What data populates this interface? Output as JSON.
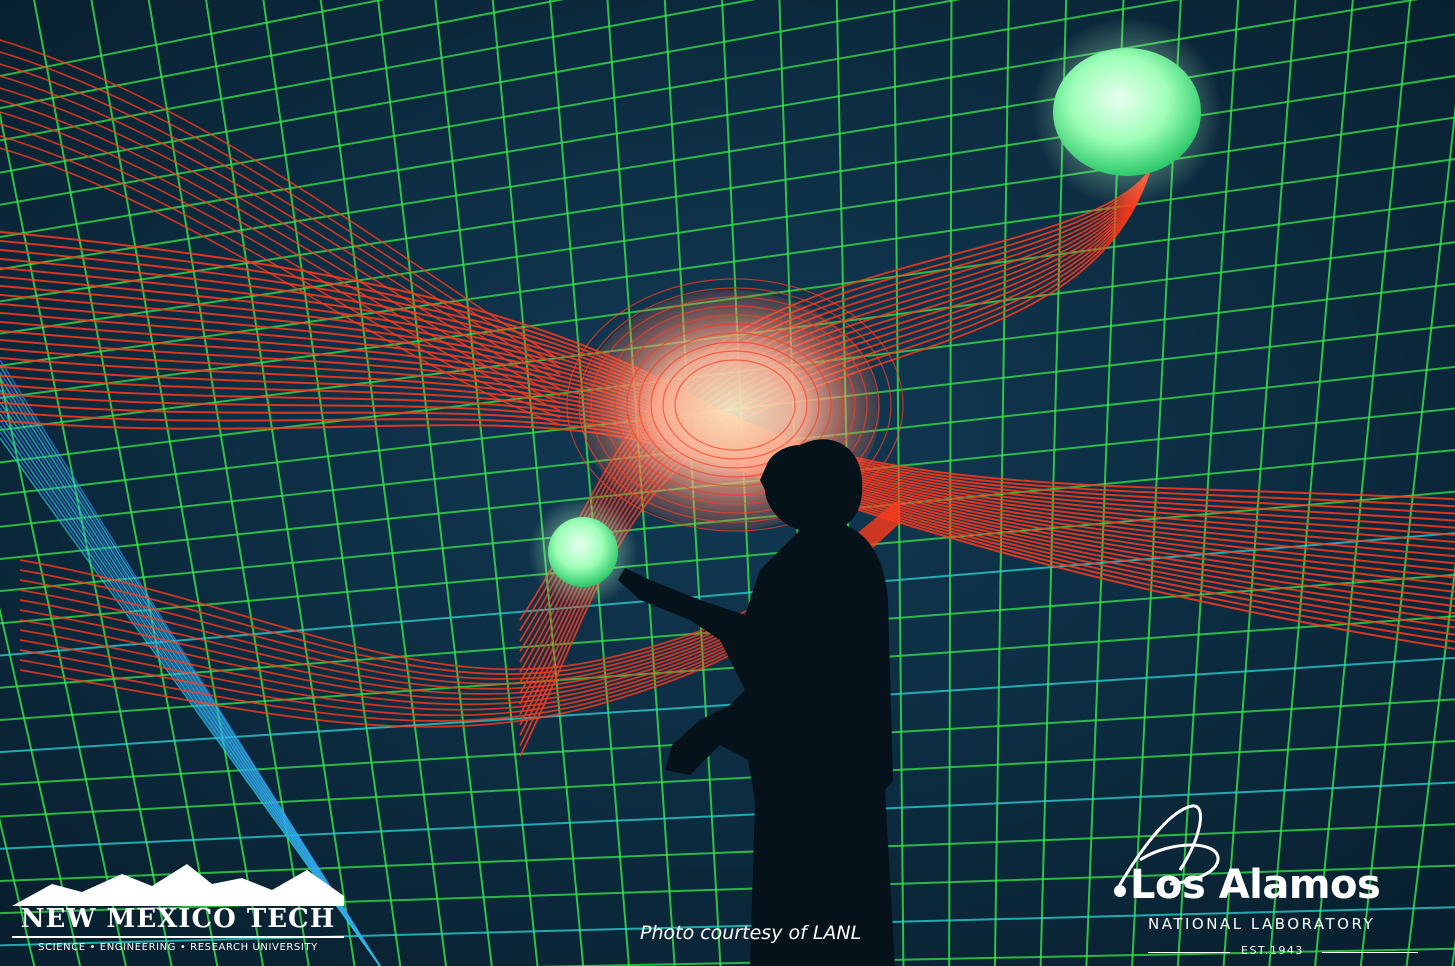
{
  "caption": "Photo courtesy of LANL",
  "logos": {
    "nmt": {
      "title": "NEW MEXICO TECH",
      "subtitle": "SCIENCE • ENGINEERING • RESEARCH UNIVERSITY"
    },
    "lanl": {
      "title": "Los Alamos",
      "subtitle": "NATIONAL LABORATORY",
      "established": "EST.1943"
    }
  },
  "colors": {
    "background": "#0b2a44",
    "grid": "#37e84a",
    "grid_cyan": "#2ad7d6",
    "streamline": "#ff3a1c",
    "sphere": "#8fffb0",
    "core": "#ffb39c"
  }
}
